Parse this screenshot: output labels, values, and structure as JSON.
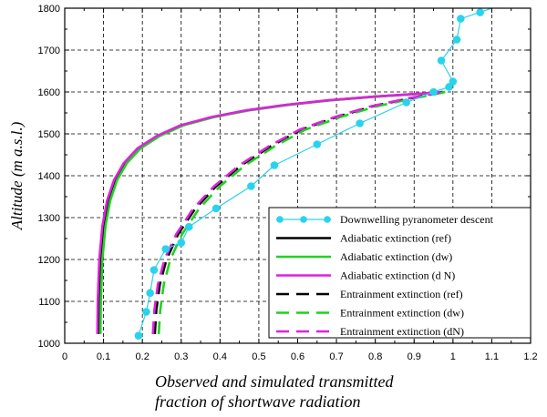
{
  "chart_data": {
    "type": "line",
    "ylabel": "Altitude (m a.s.l.)",
    "xlabel": [
      "Observed and simulated transmitted",
      "fraction of shortwave radiation"
    ],
    "xlim": [
      0,
      1.2
    ],
    "ylim": [
      1000,
      1800
    ],
    "xticks": [
      0,
      0.1,
      0.2,
      0.3,
      0.4,
      0.5,
      0.6,
      0.7,
      0.8,
      0.9,
      1,
      1.1,
      1.2
    ],
    "xtick_labels": [
      "0",
      "0.1",
      "0.2",
      "0.3",
      "0.4",
      "0.5",
      "0.6",
      "0.7",
      "0.8",
      "0.9",
      "1",
      "1.1",
      "1.2"
    ],
    "yticks": [
      1000,
      1100,
      1200,
      1300,
      1400,
      1500,
      1600,
      1700,
      1800
    ],
    "ytick_labels": [
      "1000",
      "1100",
      "1200",
      "1300",
      "1400",
      "1500",
      "1600",
      "1700",
      "1800"
    ],
    "grid": "dashed",
    "legend_position": "bottom-right",
    "series": [
      {
        "name": "Downwelling pyranometer descent",
        "color": "#29d3ec",
        "style": "line-markers",
        "x": [
          0.19,
          0.21,
          0.22,
          0.23,
          0.26,
          0.3,
          0.32,
          0.39,
          0.48,
          0.54,
          0.65,
          0.76,
          0.88,
          0.95,
          0.99,
          1.0,
          0.97,
          1.01,
          1.02,
          1.07,
          1.1
        ],
        "y": [
          1018,
          1075,
          1120,
          1175,
          1225,
          1240,
          1278,
          1322,
          1375,
          1425,
          1475,
          1525,
          1575,
          1600,
          1612,
          1625,
          1675,
          1725,
          1775,
          1790,
          1800
        ]
      },
      {
        "name": "Adiabatic extinction (ref)",
        "color": "#000000",
        "style": "solid",
        "x": [
          0.087,
          0.088,
          0.092,
          0.1,
          0.112,
          0.13,
          0.155,
          0.19,
          0.24,
          0.3,
          0.38,
          0.47,
          0.57,
          0.68,
          0.8,
          0.92,
          0.975
        ],
        "y": [
          1022,
          1100,
          1200,
          1280,
          1340,
          1390,
          1430,
          1465,
          1495,
          1520,
          1540,
          1556,
          1569,
          1580,
          1589,
          1596,
          1600
        ]
      },
      {
        "name": "Adiabatic extinction (dw)",
        "color": "#1fd21f",
        "style": "solid",
        "x": [
          0.092,
          0.093,
          0.097,
          0.105,
          0.117,
          0.135,
          0.16,
          0.195,
          0.245,
          0.305,
          0.385,
          0.475,
          0.575,
          0.685,
          0.805,
          0.925,
          0.98
        ],
        "y": [
          1022,
          1100,
          1200,
          1280,
          1340,
          1390,
          1430,
          1465,
          1495,
          1520,
          1540,
          1556,
          1569,
          1580,
          1589,
          1596,
          1600
        ]
      },
      {
        "name": "Adiabatic extinction (d N)",
        "color": "#dd22dd",
        "style": "solid",
        "x": [
          0.084,
          0.085,
          0.089,
          0.097,
          0.109,
          0.127,
          0.152,
          0.187,
          0.237,
          0.297,
          0.377,
          0.467,
          0.567,
          0.677,
          0.797,
          0.917,
          0.972
        ],
        "y": [
          1022,
          1100,
          1200,
          1280,
          1340,
          1390,
          1430,
          1465,
          1495,
          1520,
          1540,
          1556,
          1569,
          1580,
          1589,
          1596,
          1600
        ]
      },
      {
        "name": "Entrainment extinction (ref)",
        "color": "#000000",
        "style": "dashed",
        "x": [
          0.232,
          0.236,
          0.245,
          0.262,
          0.292,
          0.335,
          0.39,
          0.455,
          0.53,
          0.61,
          0.7,
          0.79,
          0.88,
          0.95,
          0.975
        ],
        "y": [
          1022,
          1080,
          1140,
          1200,
          1260,
          1320,
          1375,
          1425,
          1470,
          1510,
          1540,
          1565,
          1583,
          1595,
          1600
        ]
      },
      {
        "name": "Entrainment extinction (dw)",
        "color": "#1fd21f",
        "style": "dashed",
        "x": [
          0.242,
          0.246,
          0.255,
          0.272,
          0.302,
          0.345,
          0.4,
          0.465,
          0.54,
          0.62,
          0.71,
          0.8,
          0.89,
          0.955,
          0.98
        ],
        "y": [
          1022,
          1080,
          1140,
          1200,
          1260,
          1320,
          1375,
          1425,
          1470,
          1510,
          1540,
          1565,
          1583,
          1595,
          1600
        ]
      },
      {
        "name": "Entrainment extinction (dN)",
        "color": "#dd22dd",
        "style": "dashed",
        "x": [
          0.227,
          0.231,
          0.24,
          0.257,
          0.287,
          0.33,
          0.385,
          0.45,
          0.525,
          0.605,
          0.695,
          0.785,
          0.875,
          0.945,
          0.97
        ],
        "y": [
          1022,
          1080,
          1140,
          1200,
          1260,
          1320,
          1375,
          1425,
          1470,
          1510,
          1540,
          1565,
          1583,
          1595,
          1600
        ]
      }
    ]
  }
}
